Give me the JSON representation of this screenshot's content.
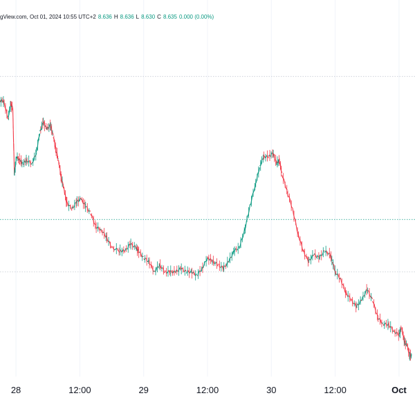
{
  "header": {
    "source": "gView.com, Oct 01, 2024 10:55 UTC+2",
    "ohlc": {
      "open": "8.636",
      "high_label": "H",
      "high": "8.636",
      "low_label": "L",
      "low": "8.630",
      "close_label": "C",
      "close": "8.635",
      "change": "0.000 (0.00%)"
    }
  },
  "colors": {
    "background": "#ffffff",
    "up": "#089981",
    "down": "#f23645",
    "grid": "#f0f3fa",
    "price_line": "#089981",
    "text": "#131722"
  },
  "chart_data": {
    "type": "line",
    "title": "",
    "x_tick_labels": [
      "28",
      "12:00",
      "29",
      "12:00",
      "30",
      "12:00",
      "Oct"
    ],
    "x_tick_hours": [
      0,
      12,
      24,
      36,
      48,
      60,
      72
    ],
    "xlim_hours": [
      -3,
      75
    ],
    "ylim": [
      0,
      1
    ],
    "grid": true,
    "horizontal_levels": [
      0.86,
      0.45,
      0.3
    ],
    "series": [
      {
        "x": [
          -3.0,
          -2.3,
          -1.5,
          -1.0,
          -0.6,
          -0.3,
          0.1,
          0.7,
          1.3,
          2.0,
          3.0,
          3.8,
          4.5,
          5.1,
          5.8,
          6.5,
          7.0,
          7.5,
          8.0,
          8.5,
          9.0,
          9.5,
          10.5,
          11.4,
          12.2,
          13.0,
          14.0,
          15.0,
          16.0,
          17.0,
          18.0,
          19.5,
          20.5,
          21.5,
          22.5,
          23.0,
          24.0,
          25.0,
          26.0,
          27.0,
          28.0,
          29.0,
          30.0,
          31.0,
          32.0,
          33.0,
          34.0,
          35.0,
          36.0,
          37.0,
          38.0,
          39.0,
          40.0,
          41.0,
          42.0,
          43.0,
          44.0,
          45.0,
          45.8,
          46.5,
          47.5,
          48.3,
          49.0,
          49.5,
          50.0,
          51.0,
          52.0,
          53.0,
          54.0,
          55.0,
          56.0,
          57.0,
          58.0,
          59.0,
          59.5,
          60.0,
          61.0,
          62.0,
          63.0,
          64.0,
          65.0,
          66.0,
          67.0,
          68.0,
          69.0,
          70.0,
          71.0,
          72.0,
          72.5,
          73.0,
          73.5,
          74.0,
          74.4
        ],
        "values": [
          0.79,
          0.79,
          0.74,
          0.78,
          0.77,
          0.58,
          0.63,
          0.62,
          0.61,
          0.62,
          0.61,
          0.64,
          0.7,
          0.73,
          0.71,
          0.72,
          0.69,
          0.65,
          0.62,
          0.57,
          0.54,
          0.5,
          0.48,
          0.5,
          0.51,
          0.49,
          0.47,
          0.43,
          0.42,
          0.4,
          0.37,
          0.36,
          0.36,
          0.38,
          0.37,
          0.36,
          0.34,
          0.33,
          0.3,
          0.32,
          0.3,
          0.3,
          0.3,
          0.31,
          0.3,
          0.3,
          0.29,
          0.31,
          0.34,
          0.33,
          0.32,
          0.31,
          0.33,
          0.36,
          0.37,
          0.42,
          0.49,
          0.55,
          0.6,
          0.63,
          0.63,
          0.64,
          0.61,
          0.62,
          0.58,
          0.53,
          0.48,
          0.41,
          0.36,
          0.33,
          0.35,
          0.34,
          0.36,
          0.35,
          0.33,
          0.3,
          0.28,
          0.24,
          0.22,
          0.2,
          0.22,
          0.25,
          0.22,
          0.17,
          0.15,
          0.15,
          0.13,
          0.12,
          0.14,
          0.1,
          0.09,
          0.06,
          0.06
        ]
      }
    ]
  }
}
